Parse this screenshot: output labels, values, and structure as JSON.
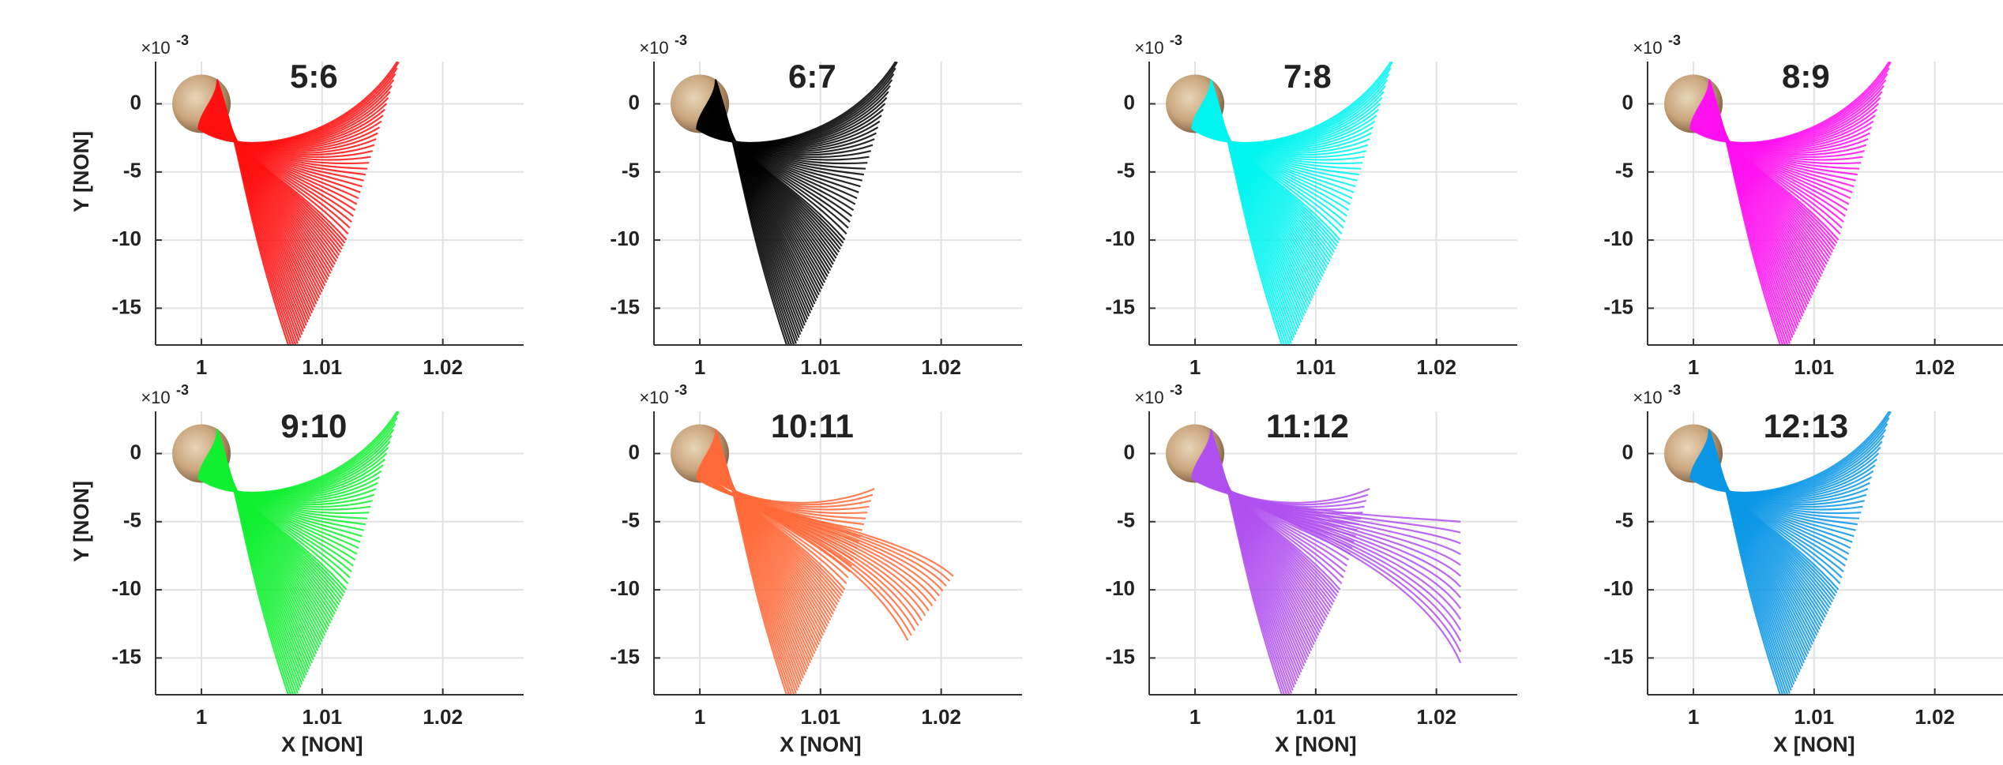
{
  "chart_data": [
    {
      "type": "trajectory",
      "title": "5:6",
      "color": "#ff1010",
      "multiplier": {
        "base": "×10",
        "exponent": "-3"
      },
      "ylabel": "Y [NON]",
      "xlim": [
        0.9962,
        1.0267
      ],
      "ylim": [
        -17.7,
        3.1
      ],
      "xticks": [
        1,
        1.01,
        1.02
      ],
      "yticks": [
        -15,
        -10,
        -5,
        0
      ],
      "grid": true
    },
    {
      "type": "trajectory",
      "title": "6:7",
      "color": "#000000",
      "multiplier": {
        "base": "×10",
        "exponent": "-3"
      },
      "xlim": [
        0.9962,
        1.0267
      ],
      "ylim": [
        -17.7,
        3.1
      ],
      "xticks": [
        1,
        1.01,
        1.02
      ],
      "yticks": [
        -15,
        -10,
        -5,
        0
      ],
      "grid": true
    },
    {
      "type": "trajectory",
      "title": "7:8",
      "color": "#00f5f0",
      "multiplier": {
        "base": "×10",
        "exponent": "-3"
      },
      "xlim": [
        0.9962,
        1.0267
      ],
      "ylim": [
        -17.7,
        3.1
      ],
      "xticks": [
        1,
        1.01,
        1.02
      ],
      "yticks": [
        -15,
        -10,
        -5,
        0
      ],
      "grid": true
    },
    {
      "type": "trajectory",
      "title": "8:9",
      "color": "#ff10f0",
      "multiplier": {
        "base": "×10",
        "exponent": "-3"
      },
      "xlim": [
        0.9962,
        1.0267
      ],
      "ylim": [
        -17.7,
        3.1
      ],
      "xticks": [
        1,
        1.01,
        1.02
      ],
      "yticks": [
        -15,
        -10,
        -5,
        0
      ],
      "grid": true
    },
    {
      "type": "trajectory",
      "title": "9:10",
      "color": "#10f030",
      "multiplier": {
        "base": "×10",
        "exponent": "-3"
      },
      "ylabel": "Y [NON]",
      "xlabel": "X [NON]",
      "xlim": [
        0.9962,
        1.0267
      ],
      "ylim": [
        -17.7,
        3.1
      ],
      "xticks": [
        1,
        1.01,
        1.02
      ],
      "yticks": [
        -15,
        -10,
        -5,
        0
      ],
      "grid": true
    },
    {
      "type": "trajectory",
      "title": "10:11",
      "color": "#ff6a3a",
      "multiplier": {
        "base": "×10",
        "exponent": "-3"
      },
      "xlabel": "X [NON]",
      "xlim": [
        0.9962,
        1.0267
      ],
      "ylim": [
        -17.7,
        3.1
      ],
      "xticks": [
        1,
        1.01,
        1.02
      ],
      "yticks": [
        -15,
        -10,
        -5,
        0
      ],
      "grid": true
    },
    {
      "type": "trajectory",
      "title": "11:12",
      "color": "#b050f0",
      "multiplier": {
        "base": "×10",
        "exponent": "-3"
      },
      "xlabel": "X [NON]",
      "xlim": [
        0.9962,
        1.0267
      ],
      "ylim": [
        -17.7,
        3.1
      ],
      "xticks": [
        1,
        1.01,
        1.02
      ],
      "yticks": [
        -15,
        -10,
        -5,
        0
      ],
      "grid": true
    },
    {
      "type": "trajectory",
      "title": "12:13",
      "color": "#0a96e6",
      "multiplier": {
        "base": "×10",
        "exponent": "-3"
      },
      "xlabel": "X [NON]",
      "xlim": [
        0.9962,
        1.0267
      ],
      "ylim": [
        -17.7,
        3.1
      ],
      "xticks": [
        1,
        1.01,
        1.02
      ],
      "yticks": [
        -15,
        -10,
        -5,
        0
      ],
      "grid": true
    }
  ]
}
